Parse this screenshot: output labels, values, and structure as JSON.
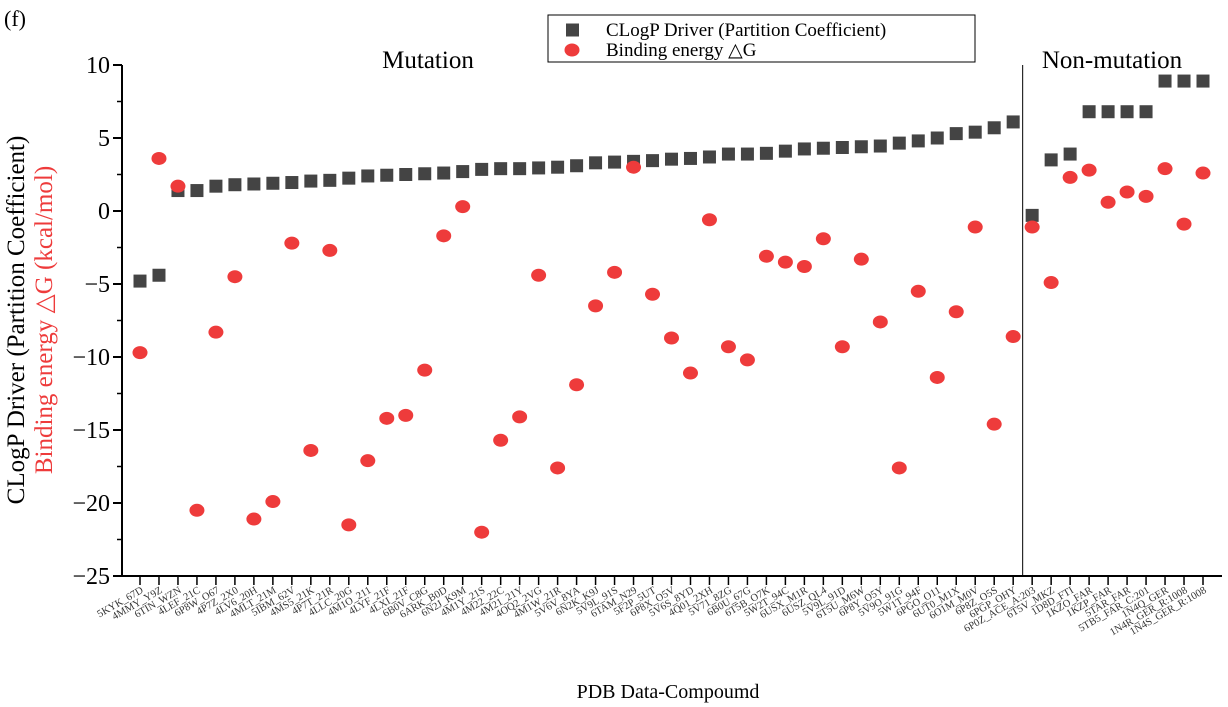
{
  "chart_data": {
    "type": "scatter",
    "panel_label": "(f)",
    "xlabel": "PDB Data-Compoumd",
    "ylabel": "CLogP Driver (Partition Coefficient)",
    "ylabel2": "Binding energy △G (kcal/mol)",
    "regions": [
      "Mutation",
      "Non-mutation"
    ],
    "categories": [
      "5KYK_67D",
      "4MMY_Y9Z",
      "6TIN_WZN",
      "4LEF_21C",
      "6P8W_O67",
      "4P7Z_2X0",
      "4LV6_20H",
      "4MLT_21M",
      "5IBM_62V",
      "4MS5_21K",
      "4P7T_21R",
      "4LLC_20G",
      "4M1O_211",
      "4LYF_21F",
      "4LXI_21F",
      "6B0V_C8G",
      "6ARK_B0D",
      "6N2J_K9M",
      "4M1Y_21S",
      "4M22_22C",
      "4M21_21Y",
      "4OQ2_2VG",
      "4M1W_21R",
      "5V6V_8YA",
      "6N2K_K9J",
      "5V9L_91S",
      "6TAM_N29",
      "5F2P_5UT",
      "6P8X_O5V",
      "5V6S_8YD",
      "4Q01_2XH",
      "5V71_8ZG",
      "6B0U_67G",
      "6T5B_O7K",
      "5W2T_94C",
      "6USX_M1R",
      "6USZ_QL4",
      "5V9L_91D",
      "6T5U_M6W",
      "6P8Y_O5Y",
      "5V9O_91G",
      "5W1T_94F",
      "6PGO_O11",
      "6UT0_M1X",
      "6O1M_M0V",
      "6P8Z_O5S",
      "6PGP_OHY",
      "6P0Z_ACE_A:203",
      "6T5V_MKZ",
      "1D8D_FTI",
      "1KZO_FAR",
      "1KZP_FAR",
      "5TAR_FAR",
      "5TB5_FAR_C:201",
      "1N4Q_GER",
      "1N4R_GER_R:1008",
      "1N4S_GER_R:1008"
    ],
    "series": [
      {
        "name": "CLogP Driver (Partition Coefficient)",
        "color": "#444444",
        "marker": "square",
        "values": [
          -4.8,
          -4.4,
          1.4,
          1.4,
          1.7,
          1.8,
          1.85,
          1.9,
          1.95,
          2.05,
          2.1,
          2.25,
          2.4,
          2.45,
          2.5,
          2.55,
          2.6,
          2.7,
          2.85,
          2.9,
          2.9,
          2.95,
          3.0,
          3.1,
          3.3,
          3.35,
          3.4,
          3.45,
          3.55,
          3.6,
          3.7,
          3.9,
          3.9,
          3.95,
          4.1,
          4.25,
          4.3,
          4.35,
          4.4,
          4.45,
          4.65,
          4.8,
          5.0,
          5.3,
          5.4,
          5.7,
          6.1,
          -0.3,
          3.5,
          3.9,
          6.8,
          6.8,
          6.8,
          6.8,
          8.9,
          8.9,
          8.9
        ]
      },
      {
        "name": "Binding energy △G",
        "color": "#ee3b3b",
        "marker": "circle",
        "values": [
          -9.7,
          3.6,
          1.7,
          -20.5,
          -8.3,
          -4.5,
          -21.1,
          -19.9,
          -2.2,
          -16.4,
          -2.7,
          -21.5,
          -17.1,
          -14.2,
          -14.0,
          -10.9,
          -1.7,
          0.3,
          -22.0,
          -15.7,
          -14.1,
          -4.4,
          -17.6,
          -11.9,
          -6.5,
          -4.2,
          3.0,
          -5.7,
          -8.7,
          -11.1,
          -0.6,
          -9.3,
          -10.2,
          -3.1,
          -3.5,
          -3.8,
          -1.9,
          -9.3,
          -3.3,
          -7.6,
          -17.6,
          -5.5,
          -11.4,
          -6.9,
          -1.1,
          -14.6,
          -8.6,
          -1.1,
          -4.9,
          2.3,
          2.8,
          0.6,
          1.3,
          1.0,
          2.9,
          -0.9,
          2.6
        ]
      }
    ],
    "ylim": [
      -25,
      10
    ],
    "yticks": [
      {
        "value": -25,
        "label": "−25"
      },
      {
        "value": -20,
        "label": "−20"
      },
      {
        "value": -15,
        "label": "−15"
      },
      {
        "value": -10,
        "label": "−10"
      },
      {
        "value": -5,
        "label": "−5"
      },
      0,
      5,
      10
    ],
    "legend": "top"
  }
}
